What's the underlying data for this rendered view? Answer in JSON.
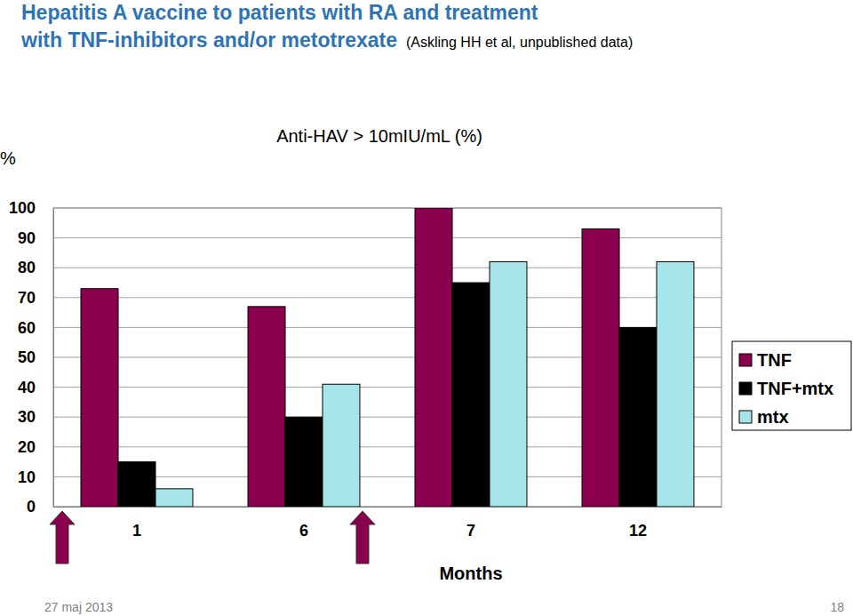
{
  "slide": {
    "title_lines": [
      "Hepatitis A vaccine to patients with RA and treatment",
      "with TNF-inhibitors and/or metotrexate"
    ],
    "source": "(Askling HH et al, unpublished data)",
    "date": "27 maj 2013",
    "page": 18
  },
  "chart_data": {
    "type": "bar",
    "title": "Anti-HAV > 10mIU/mL (%)",
    "y_label": "%",
    "x_label": "Months",
    "categories": [
      "1",
      "6",
      "7",
      "12"
    ],
    "series": [
      {
        "name": "TNF",
        "color": "#8a004e",
        "values": [
          73,
          67,
          100,
          93
        ]
      },
      {
        "name": "TNF+mtx",
        "color": "#000000",
        "values": [
          15,
          30,
          75,
          60
        ]
      },
      {
        "name": "mtx",
        "color": "#a6e5ea",
        "values": [
          6,
          41,
          82,
          82
        ]
      }
    ],
    "ylim": [
      0,
      100
    ],
    "yticks": [
      0,
      10,
      20,
      30,
      40,
      50,
      60,
      70,
      80,
      90,
      100
    ],
    "grid": true,
    "legend": "right"
  }
}
